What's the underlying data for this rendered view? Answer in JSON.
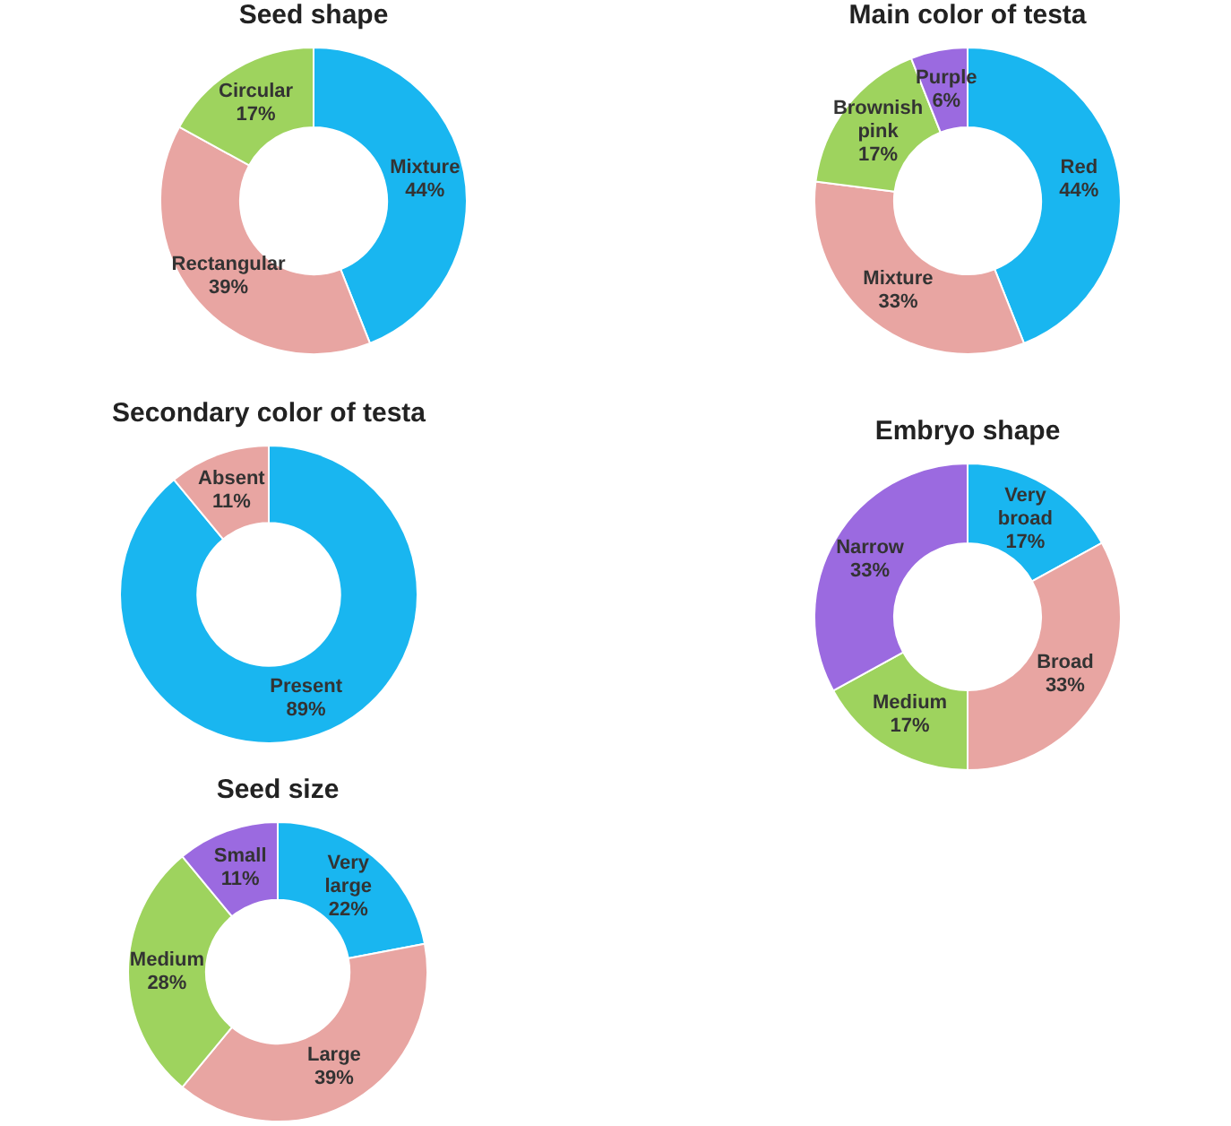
{
  "chart_data": [
    {
      "type": "donut",
      "title": "Seed shape",
      "categories": [
        "Mixture",
        "Rectangular",
        "Circular"
      ],
      "values": [
        44,
        39,
        17
      ],
      "value_labels": [
        "44%",
        "39%",
        "17%"
      ],
      "colors": [
        "#19b6f0",
        "#e8a5a2",
        "#9ed35e"
      ],
      "legend": false
    },
    {
      "type": "donut",
      "title": "Main color of testa",
      "categories": [
        "Red",
        "Mixture",
        "Brownish pink",
        "Purple"
      ],
      "values": [
        44,
        33,
        17,
        6
      ],
      "value_labels": [
        "44%",
        "33%",
        "17%",
        "6%"
      ],
      "colors": [
        "#19b6f0",
        "#e8a5a2",
        "#9ed35e",
        "#9b6ae0"
      ],
      "legend": false
    },
    {
      "type": "donut",
      "title": "Secondary color of testa",
      "categories": [
        "Present",
        "Absent"
      ],
      "values": [
        89,
        11
      ],
      "value_labels": [
        "89%",
        "11%"
      ],
      "colors": [
        "#19b6f0",
        "#e8a5a2"
      ],
      "legend": false
    },
    {
      "type": "donut",
      "title": "Embryo shape",
      "categories": [
        "Very broad",
        "Broad",
        "Medium",
        "Narrow"
      ],
      "values": [
        17,
        33,
        17,
        33
      ],
      "value_labels": [
        "17%",
        "33%",
        "17%",
        "33%"
      ],
      "colors": [
        "#19b6f0",
        "#e8a5a2",
        "#9ed35e",
        "#9b6ae0"
      ],
      "legend": false
    },
    {
      "type": "donut",
      "title": "Seed size",
      "categories": [
        "Very large",
        "Large",
        "Medium",
        "Small"
      ],
      "values": [
        22,
        39,
        28,
        11
      ],
      "value_labels": [
        "22%",
        "39%",
        "28%",
        "11%"
      ],
      "colors": [
        "#19b6f0",
        "#e8a5a2",
        "#9ed35e",
        "#9b6ae0"
      ],
      "legend": false
    }
  ]
}
